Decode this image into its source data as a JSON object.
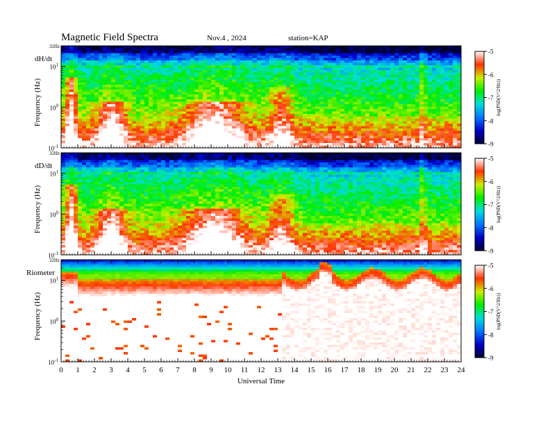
{
  "chart_data": {
    "type": "heatmap",
    "title": "Magnetic Field Spectra",
    "date": "Nov.4 , 2024",
    "station": "station=KAP",
    "xlabel": "Universal Time",
    "xlim": [
      0,
      24
    ],
    "x_ticks": [
      "0",
      "1",
      "2",
      "3",
      "4",
      "5",
      "6",
      "7",
      "8",
      "9",
      "10",
      "11",
      "12",
      "13",
      "14",
      "15",
      "16",
      "17",
      "18",
      "19",
      "20",
      "21",
      "22",
      "23",
      "24"
    ],
    "colorbar": {
      "label": "log(PSD(V^2/Hz))",
      "range": [
        -9,
        -5
      ],
      "ticks": [
        "-5",
        "-6",
        "-7",
        "-8",
        "-9"
      ],
      "colormap": [
        "#000033",
        "#0000cc",
        "#0077ff",
        "#00dddd",
        "#00ee00",
        "#ccee00",
        "#ff3300",
        "#ffffff"
      ]
    },
    "panels": [
      {
        "name": "dH/dt",
        "ylabel": "Frequency (Hz)",
        "y_top_label": "32Hz",
        "y_ticks": [
          "10^1",
          "10^0",
          "10^-1"
        ],
        "ylim_hz": [
          0.1,
          32
        ],
        "features": [
          {
            "label": "strong activity",
            "t_start": 0.3,
            "t_end": 1.0
          },
          {
            "label": "intense band",
            "t_start": 2.2,
            "t_end": 3.8
          },
          {
            "label": "intense band",
            "t_start": 7.5,
            "t_end": 11.0
          },
          {
            "label": "enhancement",
            "t_start": 12.5,
            "t_end": 13.8
          },
          {
            "label": "spike",
            "t_start": 21.6,
            "t_end": 21.8
          }
        ]
      },
      {
        "name": "dD/dt",
        "ylabel": "Frequency (Hz)",
        "y_top_label": "32Hz",
        "y_ticks": [
          "10^1",
          "10^0",
          "10^-1"
        ],
        "ylim_hz": [
          0.1,
          32
        ],
        "features": [
          {
            "label": "strong activity",
            "t_start": 0.3,
            "t_end": 1.0
          },
          {
            "label": "intense band",
            "t_start": 2.2,
            "t_end": 3.8
          },
          {
            "label": "intense band",
            "t_start": 7.5,
            "t_end": 11.0
          },
          {
            "label": "enhancement",
            "t_start": 12.5,
            "t_end": 13.8
          },
          {
            "label": "spike",
            "t_start": 21.6,
            "t_end": 21.8
          }
        ]
      },
      {
        "name": "Riometer",
        "ylabel": "Frequency (Hz)",
        "y_top_label": "32Hz",
        "y_ticks": [
          "10^1",
          "10^0",
          "10^-1"
        ],
        "ylim_hz": [
          0.1,
          32
        ],
        "features": [
          {
            "label": "quiet high-power cap",
            "t_start": 0.0,
            "t_end": 13.3
          },
          {
            "label": "rising cutoff",
            "t_start": 13.3,
            "t_end": 24.0
          }
        ]
      }
    ]
  }
}
